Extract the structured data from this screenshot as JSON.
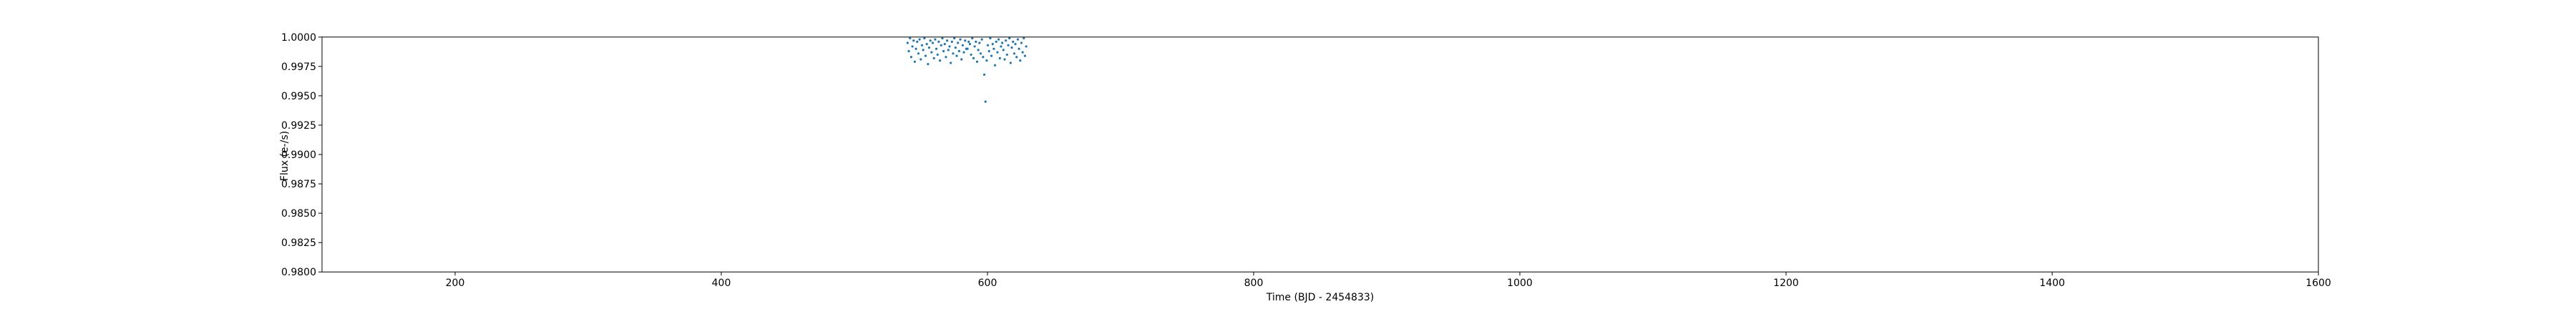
{
  "chart_data": {
    "type": "scatter",
    "xlabel": "Time (BJD - 2454833)",
    "ylabel": "Flux (e-/s)",
    "color": "#1f77b4",
    "xlim": [
      100,
      1600
    ],
    "xticks": [
      200,
      400,
      600,
      800,
      1000,
      1200,
      1400,
      1600
    ],
    "ylim": [
      0.98,
      1.0
    ],
    "yticks": [
      {
        "value": 0.98,
        "label": "0.9800"
      },
      {
        "value": 0.9825,
        "label": "0.9825"
      },
      {
        "value": 0.985,
        "label": "0.9850"
      },
      {
        "value": 0.9875,
        "label": "0.9875"
      },
      {
        "value": 0.99,
        "label": "0.9900"
      },
      {
        "value": 0.9925,
        "label": "0.9925"
      },
      {
        "value": 0.995,
        "label": "0.9950"
      },
      {
        "value": 0.9975,
        "label": "0.9975"
      },
      {
        "value": 1.0,
        "label": "1.0000"
      }
    ],
    "x": [
      540,
      540.9,
      541.8,
      542.7,
      543.6,
      544.5,
      545.4,
      546.3,
      547.2,
      548.1,
      549,
      549.9,
      550.8,
      551.7,
      552.6,
      553.5,
      554.4,
      555.3,
      556.2,
      557.1,
      558,
      558.9,
      559.8,
      560.7,
      561.6,
      562.5,
      563.4,
      564.3,
      565.2,
      566.1,
      567,
      567.9,
      568.8,
      569.7,
      570.6,
      571.5,
      572.4,
      573.3,
      574.2,
      575.1,
      576,
      576.9,
      577.8,
      578.7,
      579.6,
      580.5,
      581.4,
      582.3,
      583.2,
      584.1,
      585,
      585.9,
      586.8,
      587.7,
      588.6,
      589.5,
      590.4,
      591.3,
      592.2,
      593.1,
      594,
      594.9,
      595.8,
      596.7,
      597.6,
      598.5,
      599.4,
      600.3,
      601.2,
      602.1,
      603,
      603.9,
      604.8,
      605.7,
      606.6,
      607.5,
      608.4,
      609.3,
      610.2,
      611.1,
      612,
      612.9,
      613.8,
      614.7,
      615.6,
      616.5,
      617.4,
      618.3,
      619.2,
      620.1,
      621,
      621.9,
      622.8,
      623.7,
      624.6,
      625.5,
      626.4,
      627.3,
      628.2,
      629.1
    ],
    "values": [
      0.9995,
      0.9988,
      0.9999,
      0.9983,
      0.9992,
      0.9997,
      0.9979,
      0.999,
      0.9996,
      0.9986,
      0.9998,
      0.9981,
      0.9993,
      0.9989,
      0.9999,
      0.9984,
      0.9994,
      0.9977,
      0.9991,
      0.9997,
      0.9987,
      0.9995,
      0.9982,
      0.9998,
      0.999,
      0.9985,
      0.9996,
      0.998,
      0.9993,
      0.9999,
      0.9988,
      0.9994,
      0.9983,
      0.9997,
      0.9989,
      0.9992,
      0.9978,
      0.9996,
      0.9986,
      0.9999,
      0.9991,
      0.9984,
      0.9995,
      0.9988,
      0.9998,
      0.9981,
      0.9993,
      0.9987,
      0.9997,
      0.999,
      0.999,
      0.9996,
      0.9994,
      0.9985,
      0.9999,
      0.9982,
      0.9992,
      0.9996,
      0.9979,
      0.9989,
      0.9995,
      0.9986,
      0.9998,
      0.9983,
      0.9968,
      0.9945,
      0.998,
      0.9993,
      0.9988,
      0.9999,
      0.9984,
      0.9994,
      0.999,
      0.9976,
      0.9996,
      0.9987,
      0.9998,
      0.9982,
      0.9992,
      0.9995,
      0.9989,
      0.9981,
      0.9997,
      0.9985,
      0.9993,
      0.9999,
      0.9978,
      0.9991,
      0.9996,
      0.9986,
      0.9994,
      0.9983,
      0.9998,
      0.999,
      0.998,
      0.9995,
      0.9987,
      0.9999,
      0.9984,
      0.9992
    ]
  }
}
